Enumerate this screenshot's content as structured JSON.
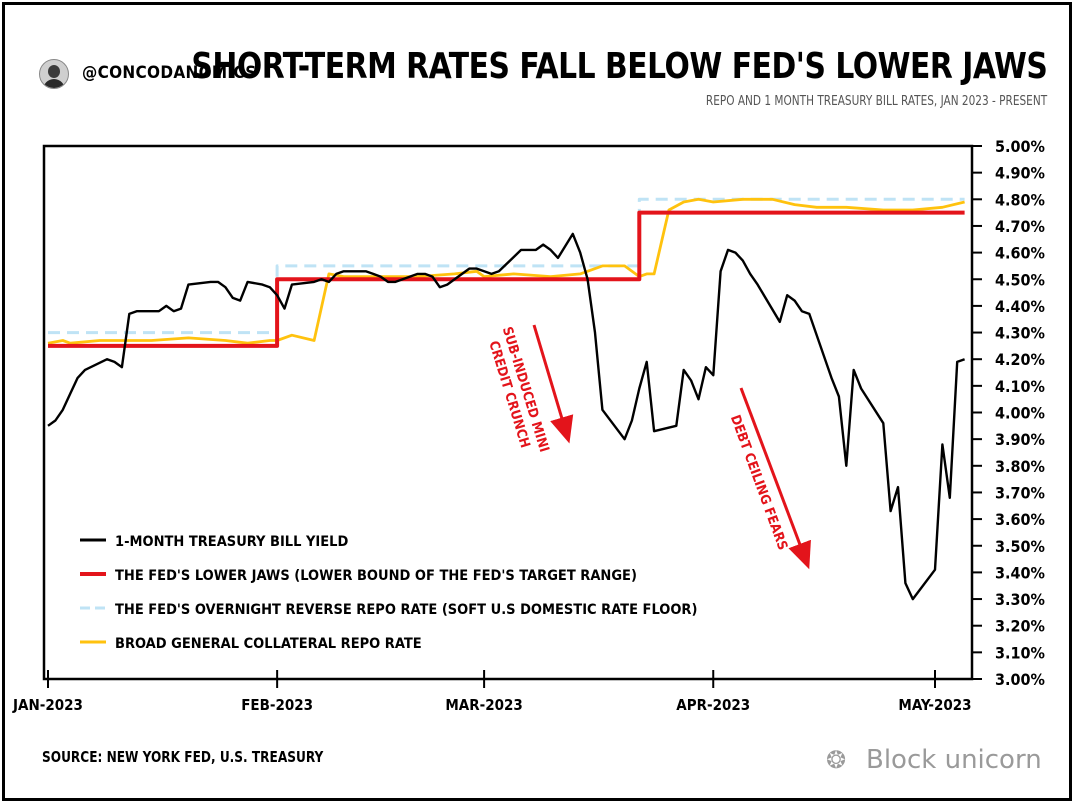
{
  "header": {
    "handle": "@CONCODANOMICS",
    "title": "SHORT-TERM RATES FALL BELOW FED'S LOWER JAWS",
    "subtitle": "REPO AND 1 MONTH TREASURY BILL RATES, JAN 2023 - PRESENT"
  },
  "footer": {
    "source": "SOURCE: NEW YORK FED, U.S. TREASURY",
    "watermark": "Block unicorn"
  },
  "colors": {
    "tbill": "#000000",
    "lower_jaws": "#e3141b",
    "rrp": "#bfe3f5",
    "bgcr": "#ffc20e",
    "annotation": "#e3141b"
  },
  "chart_data": {
    "type": "line",
    "x_axis": {
      "ticks": [
        {
          "label": "JAN-2023",
          "date": "2023-01-01"
        },
        {
          "label": "FEB-2023",
          "date": "2023-02-01"
        },
        {
          "label": "MAR-2023",
          "date": "2023-03-01"
        },
        {
          "label": "APR-2023",
          "date": "2023-04-01"
        },
        {
          "label": "MAY-2023",
          "date": "2023-05-01"
        }
      ],
      "range": [
        "2023-01-01",
        "2023-05-01"
      ]
    },
    "y_axis": {
      "range": [
        3.0,
        5.0
      ],
      "position": "right",
      "ticks": [
        "3.00%",
        "3.10%",
        "3.20%",
        "3.30%",
        "3.40%",
        "3.50%",
        "3.60%",
        "3.70%",
        "3.80%",
        "3.90%",
        "4.00%",
        "4.10%",
        "4.20%",
        "4.30%",
        "4.40%",
        "4.50%",
        "4.60%",
        "4.70%",
        "4.80%",
        "4.90%",
        "5.00%"
      ]
    },
    "grid": false,
    "legend_position": "bottom-left",
    "series": [
      {
        "name": "1-MONTH TREASURY BILL YIELD",
        "style": "solid",
        "points": [
          [
            "2023-01-01",
            3.95
          ],
          [
            "2023-01-02",
            3.97
          ],
          [
            "2023-01-03",
            4.01
          ],
          [
            "2023-01-04",
            4.07
          ],
          [
            "2023-01-05",
            4.13
          ],
          [
            "2023-01-06",
            4.16
          ],
          [
            "2023-01-09",
            4.2
          ],
          [
            "2023-01-10",
            4.19
          ],
          [
            "2023-01-11",
            4.17
          ],
          [
            "2023-01-12",
            4.37
          ],
          [
            "2023-01-13",
            4.38
          ],
          [
            "2023-01-16",
            4.38
          ],
          [
            "2023-01-17",
            4.4
          ],
          [
            "2023-01-18",
            4.38
          ],
          [
            "2023-01-19",
            4.39
          ],
          [
            "2023-01-20",
            4.48
          ],
          [
            "2023-01-23",
            4.49
          ],
          [
            "2023-01-24",
            4.49
          ],
          [
            "2023-01-25",
            4.47
          ],
          [
            "2023-01-26",
            4.43
          ],
          [
            "2023-01-27",
            4.42
          ],
          [
            "2023-01-28",
            4.49
          ],
          [
            "2023-01-30",
            4.48
          ],
          [
            "2023-01-31",
            4.47
          ],
          [
            "2023-02-01",
            4.44
          ],
          [
            "2023-02-02",
            4.39
          ],
          [
            "2023-02-03",
            4.48
          ],
          [
            "2023-02-06",
            4.49
          ],
          [
            "2023-02-07",
            4.5
          ],
          [
            "2023-02-08",
            4.49
          ],
          [
            "2023-02-09",
            4.52
          ],
          [
            "2023-02-10",
            4.53
          ],
          [
            "2023-02-13",
            4.53
          ],
          [
            "2023-02-14",
            4.52
          ],
          [
            "2023-02-15",
            4.51
          ],
          [
            "2023-02-16",
            4.49
          ],
          [
            "2023-02-17",
            4.49
          ],
          [
            "2023-02-20",
            4.52
          ],
          [
            "2023-02-21",
            4.52
          ],
          [
            "2023-02-22",
            4.51
          ],
          [
            "2023-02-23",
            4.47
          ],
          [
            "2023-02-24",
            4.48
          ],
          [
            "2023-02-27",
            4.54
          ],
          [
            "2023-02-28",
            4.54
          ],
          [
            "2023-03-01",
            4.53
          ],
          [
            "2023-03-02",
            4.52
          ],
          [
            "2023-03-03",
            4.53
          ],
          [
            "2023-03-06",
            4.61
          ],
          [
            "2023-03-07",
            4.61
          ],
          [
            "2023-03-08",
            4.61
          ],
          [
            "2023-03-09",
            4.63
          ],
          [
            "2023-03-10",
            4.61
          ],
          [
            "2023-03-11",
            4.58
          ],
          [
            "2023-03-13",
            4.67
          ],
          [
            "2023-03-14",
            4.6
          ],
          [
            "2023-03-15",
            4.5
          ],
          [
            "2023-03-16",
            4.3
          ],
          [
            "2023-03-17",
            4.01
          ],
          [
            "2023-03-20",
            3.9
          ],
          [
            "2023-03-21",
            3.97
          ],
          [
            "2023-03-22",
            4.09
          ],
          [
            "2023-03-23",
            4.19
          ],
          [
            "2023-03-24",
            3.93
          ],
          [
            "2023-03-27",
            3.95
          ],
          [
            "2023-03-28",
            4.16
          ],
          [
            "2023-03-29",
            4.12
          ],
          [
            "2023-03-30",
            4.05
          ],
          [
            "2023-03-31",
            4.17
          ],
          [
            "2023-04-01",
            4.14
          ],
          [
            "2023-04-02",
            4.53
          ],
          [
            "2023-04-03",
            4.61
          ],
          [
            "2023-04-04",
            4.6
          ],
          [
            "2023-04-05",
            4.57
          ],
          [
            "2023-04-06",
            4.52
          ],
          [
            "2023-04-07",
            4.48
          ],
          [
            "2023-04-10",
            4.34
          ],
          [
            "2023-04-11",
            4.44
          ],
          [
            "2023-04-12",
            4.42
          ],
          [
            "2023-04-13",
            4.38
          ],
          [
            "2023-04-14",
            4.37
          ],
          [
            "2023-04-17",
            4.13
          ],
          [
            "2023-04-18",
            4.06
          ],
          [
            "2023-04-19",
            3.8
          ],
          [
            "2023-04-20",
            4.16
          ],
          [
            "2023-04-21",
            4.09
          ],
          [
            "2023-04-24",
            3.96
          ],
          [
            "2023-04-25",
            3.63
          ],
          [
            "2023-04-26",
            3.72
          ],
          [
            "2023-04-27",
            3.36
          ],
          [
            "2023-04-28",
            3.3
          ],
          [
            "2023-05-01",
            3.41
          ],
          [
            "2023-05-02",
            3.88
          ],
          [
            "2023-05-03",
            3.68
          ],
          [
            "2023-05-04",
            4.19
          ],
          [
            "2023-05-05",
            4.2
          ]
        ]
      },
      {
        "name": "THE FED'S LOWER JAWS (LOWER BOUND OF THE FED'S TARGET RANGE)",
        "style": "step",
        "points": [
          [
            "2023-01-01",
            4.25
          ],
          [
            "2023-02-01",
            4.25
          ],
          [
            "2023-02-01",
            4.5
          ],
          [
            "2023-03-22",
            4.5
          ],
          [
            "2023-03-22",
            4.75
          ],
          [
            "2023-05-05",
            4.75
          ]
        ]
      },
      {
        "name": "THE FED'S OVERNIGHT REVERSE REPO RATE (SOFT U.S DOMESTIC RATE FLOOR)",
        "style": "dashed",
        "points": [
          [
            "2023-01-01",
            4.3
          ],
          [
            "2023-02-01",
            4.3
          ],
          [
            "2023-02-01",
            4.55
          ],
          [
            "2023-03-22",
            4.55
          ],
          [
            "2023-03-22",
            4.8
          ],
          [
            "2023-05-05",
            4.8
          ]
        ]
      },
      {
        "name": "BROAD GENERAL COLLATERAL REPO RATE",
        "style": "solid",
        "points": [
          [
            "2023-01-01",
            4.26
          ],
          [
            "2023-01-03",
            4.27
          ],
          [
            "2023-01-04",
            4.26
          ],
          [
            "2023-01-08",
            4.27
          ],
          [
            "2023-01-15",
            4.27
          ],
          [
            "2023-01-20",
            4.28
          ],
          [
            "2023-01-25",
            4.27
          ],
          [
            "2023-01-28",
            4.26
          ],
          [
            "2023-01-31",
            4.27
          ],
          [
            "2023-02-01",
            4.27
          ],
          [
            "2023-02-03",
            4.29
          ],
          [
            "2023-02-06",
            4.27
          ],
          [
            "2023-02-08",
            4.52
          ],
          [
            "2023-02-10",
            4.51
          ],
          [
            "2023-02-15",
            4.51
          ],
          [
            "2023-02-20",
            4.51
          ],
          [
            "2023-02-25",
            4.52
          ],
          [
            "2023-02-28",
            4.53
          ],
          [
            "2023-03-01",
            4.51
          ],
          [
            "2023-03-05",
            4.52
          ],
          [
            "2023-03-10",
            4.51
          ],
          [
            "2023-03-14",
            4.52
          ],
          [
            "2023-03-17",
            4.55
          ],
          [
            "2023-03-20",
            4.55
          ],
          [
            "2023-03-22",
            4.51
          ],
          [
            "2023-03-23",
            4.52
          ],
          [
            "2023-03-24",
            4.52
          ],
          [
            "2023-03-26",
            4.76
          ],
          [
            "2023-03-28",
            4.79
          ],
          [
            "2023-03-30",
            4.8
          ],
          [
            "2023-04-01",
            4.79
          ],
          [
            "2023-04-05",
            4.8
          ],
          [
            "2023-04-09",
            4.8
          ],
          [
            "2023-04-12",
            4.78
          ],
          [
            "2023-04-15",
            4.77
          ],
          [
            "2023-04-19",
            4.77
          ],
          [
            "2023-04-24",
            4.76
          ],
          [
            "2023-04-28",
            4.76
          ],
          [
            "2023-05-02",
            4.77
          ],
          [
            "2023-05-05",
            4.79
          ]
        ]
      }
    ],
    "annotations": [
      {
        "text": "SUB-INDUCED MINI CREDIT CRUNCH"
      },
      {
        "text": "DEBT CEILING FEARS"
      }
    ]
  }
}
